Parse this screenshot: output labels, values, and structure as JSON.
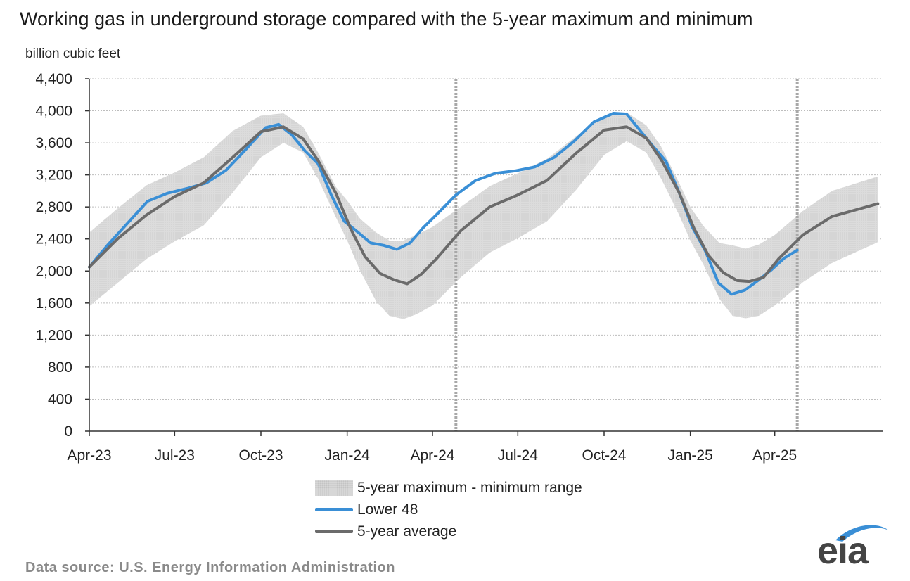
{
  "chart_data": {
    "type": "area",
    "title": "Working gas in underground  storage compared with the 5-year maximum and minimum",
    "ylabel": "billion cubic feet",
    "xlabel": "",
    "ylim": [
      0,
      4400
    ],
    "yticks": [
      0,
      400,
      800,
      1200,
      1600,
      2000,
      2400,
      2800,
      3200,
      3600,
      4000,
      4400
    ],
    "ytick_labels": [
      "0",
      "400",
      "800",
      "1,200",
      "1,600",
      "2,000",
      "2,400",
      "2,800",
      "3,200",
      "3,600",
      "4,000",
      "4,400"
    ],
    "xlim": [
      "2023-04-01",
      "2025-07-25"
    ],
    "xticks": [
      "2023-04-01",
      "2023-07-01",
      "2023-10-01",
      "2024-01-01",
      "2024-04-01",
      "2024-07-01",
      "2024-10-01",
      "2025-01-01",
      "2025-04-01"
    ],
    "xtick_labels": [
      "Apr-23",
      "Jul-23",
      "Oct-23",
      "Jan-24",
      "Apr-24",
      "Jul-24",
      "Oct-24",
      "Jan-25",
      "Apr-25"
    ],
    "vertical_markers": [
      "2024-04-26",
      "2025-04-25"
    ],
    "grid": "horizontal",
    "legend_position": "bottom-center",
    "series": [
      {
        "name": "5-year maximum - minimum range",
        "kind": "band",
        "color": "#d9d9d9",
        "x": [
          "2023-04-01",
          "2023-05-01",
          "2023-06-01",
          "2023-07-01",
          "2023-08-01",
          "2023-09-01",
          "2023-10-01",
          "2023-10-25",
          "2023-11-15",
          "2023-12-01",
          "2023-12-20",
          "2024-01-01",
          "2024-01-15",
          "2024-02-01",
          "2024-02-15",
          "2024-03-01",
          "2024-03-15",
          "2024-04-01",
          "2024-05-01",
          "2024-06-01",
          "2024-07-01",
          "2024-08-01",
          "2024-09-01",
          "2024-10-01",
          "2024-10-25",
          "2024-11-15",
          "2024-12-01",
          "2024-12-20",
          "2025-01-01",
          "2025-01-15",
          "2025-02-01",
          "2025-02-15",
          "2025-03-01",
          "2025-03-15",
          "2025-04-01",
          "2025-05-01",
          "2025-06-01",
          "2025-07-20"
        ],
        "max": [
          2480,
          2780,
          3070,
          3230,
          3420,
          3750,
          3940,
          3970,
          3800,
          3480,
          3050,
          2880,
          2650,
          2480,
          2380,
          2380,
          2450,
          2550,
          2800,
          3060,
          3220,
          3400,
          3680,
          3930,
          3980,
          3820,
          3550,
          3100,
          2800,
          2560,
          2350,
          2320,
          2280,
          2330,
          2450,
          2750,
          3000,
          3180
        ],
        "min": [
          1560,
          1850,
          2150,
          2370,
          2570,
          2980,
          3420,
          3600,
          3480,
          3150,
          2670,
          2380,
          2000,
          1620,
          1440,
          1400,
          1460,
          1570,
          1920,
          2230,
          2410,
          2620,
          3010,
          3450,
          3620,
          3480,
          3150,
          2700,
          2380,
          2080,
          1650,
          1440,
          1410,
          1440,
          1570,
          1860,
          2100,
          2360
        ]
      },
      {
        "name": "Lower 48",
        "kind": "line",
        "color": "#3a8fd6",
        "x": [
          "2023-04-01",
          "2023-04-21",
          "2023-05-12",
          "2023-06-02",
          "2023-06-23",
          "2023-07-14",
          "2023-08-04",
          "2023-08-25",
          "2023-09-15",
          "2023-10-06",
          "2023-10-20",
          "2023-11-03",
          "2023-11-17",
          "2023-12-01",
          "2023-12-15",
          "2023-12-29",
          "2024-01-12",
          "2024-01-26",
          "2024-02-09",
          "2024-02-23",
          "2024-03-08",
          "2024-03-22",
          "2024-04-05",
          "2024-04-26",
          "2024-05-17",
          "2024-06-07",
          "2024-06-28",
          "2024-07-19",
          "2024-08-09",
          "2024-08-30",
          "2024-09-20",
          "2024-10-11",
          "2024-10-25",
          "2024-11-08",
          "2024-11-22",
          "2024-12-06",
          "2024-12-20",
          "2025-01-03",
          "2025-01-17",
          "2025-01-31",
          "2025-02-14",
          "2025-02-28",
          "2025-03-14",
          "2025-03-28",
          "2025-04-11",
          "2025-04-25"
        ],
        "values": [
          2050,
          2330,
          2600,
          2870,
          2970,
          3030,
          3100,
          3260,
          3520,
          3790,
          3830,
          3700,
          3500,
          3340,
          2950,
          2620,
          2490,
          2350,
          2320,
          2270,
          2350,
          2540,
          2700,
          2950,
          3130,
          3220,
          3250,
          3300,
          3420,
          3620,
          3860,
          3970,
          3960,
          3760,
          3560,
          3370,
          2980,
          2550,
          2250,
          1850,
          1710,
          1760,
          1880,
          2010,
          2160,
          2260
        ]
      },
      {
        "name": "5-year average",
        "kind": "line",
        "color": "#6b6b6b",
        "x": [
          "2023-04-01",
          "2023-05-01",
          "2023-06-01",
          "2023-07-01",
          "2023-08-01",
          "2023-09-01",
          "2023-10-01",
          "2023-10-25",
          "2023-11-15",
          "2023-12-01",
          "2023-12-20",
          "2024-01-05",
          "2024-01-20",
          "2024-02-05",
          "2024-02-20",
          "2024-03-05",
          "2024-03-20",
          "2024-04-05",
          "2024-05-01",
          "2024-06-01",
          "2024-07-01",
          "2024-08-01",
          "2024-09-01",
          "2024-10-01",
          "2024-10-25",
          "2024-11-15",
          "2024-12-01",
          "2024-12-20",
          "2025-01-05",
          "2025-01-20",
          "2025-02-05",
          "2025-02-20",
          "2025-03-05",
          "2025-03-20",
          "2025-04-05",
          "2025-05-01",
          "2025-06-01",
          "2025-07-20"
        ],
        "values": [
          2050,
          2400,
          2700,
          2930,
          3100,
          3420,
          3740,
          3800,
          3650,
          3380,
          2970,
          2520,
          2180,
          1970,
          1890,
          1840,
          1960,
          2150,
          2500,
          2800,
          2950,
          3130,
          3470,
          3760,
          3800,
          3660,
          3390,
          2980,
          2530,
          2200,
          1980,
          1880,
          1870,
          1920,
          2150,
          2450,
          2680,
          2840
        ]
      }
    ]
  },
  "footer": {
    "source": "Data source:  U.S. Energy Information Administration",
    "logo_text": "eia"
  }
}
